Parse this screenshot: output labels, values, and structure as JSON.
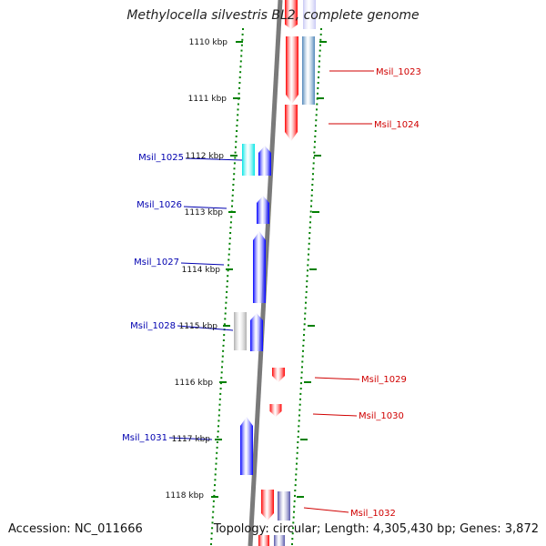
{
  "title": "Methylocella silvestris BL2, complete genome",
  "accession": "Accession: NC_011666",
  "topology": "Topology: circular; Length: 4,305,430 bp; Genes: 3,872",
  "colors": {
    "forward": "#ff0000",
    "reverse": "#0000ff",
    "reverse_cyan": "#00e5e5",
    "reverse_gray": "#b0b0b0",
    "forward_steel": "#4f86b9",
    "reverse_pale": "#c8c8f4",
    "reverse_slate": "#5555aa",
    "tick": "#008000",
    "label_forward": "#d00000",
    "label_reverse": "#0000b0",
    "backbone": "#7a7a7a"
  },
  "ticks": [
    "1110 kbp",
    "1111 kbp",
    "1112 kbp",
    "1113 kbp",
    "1114 kbp",
    "1115 kbp",
    "1116 kbp",
    "1117 kbp",
    "1118 kbp"
  ],
  "forward_labels": [
    "Msil_1023",
    "Msil_1024",
    "Msil_1029",
    "Msil_1030",
    "Msil_1032"
  ],
  "reverse_labels": [
    "Msil_1025",
    "Msil_1026",
    "Msil_1027",
    "Msil_1028",
    "Msil_1031"
  ]
}
